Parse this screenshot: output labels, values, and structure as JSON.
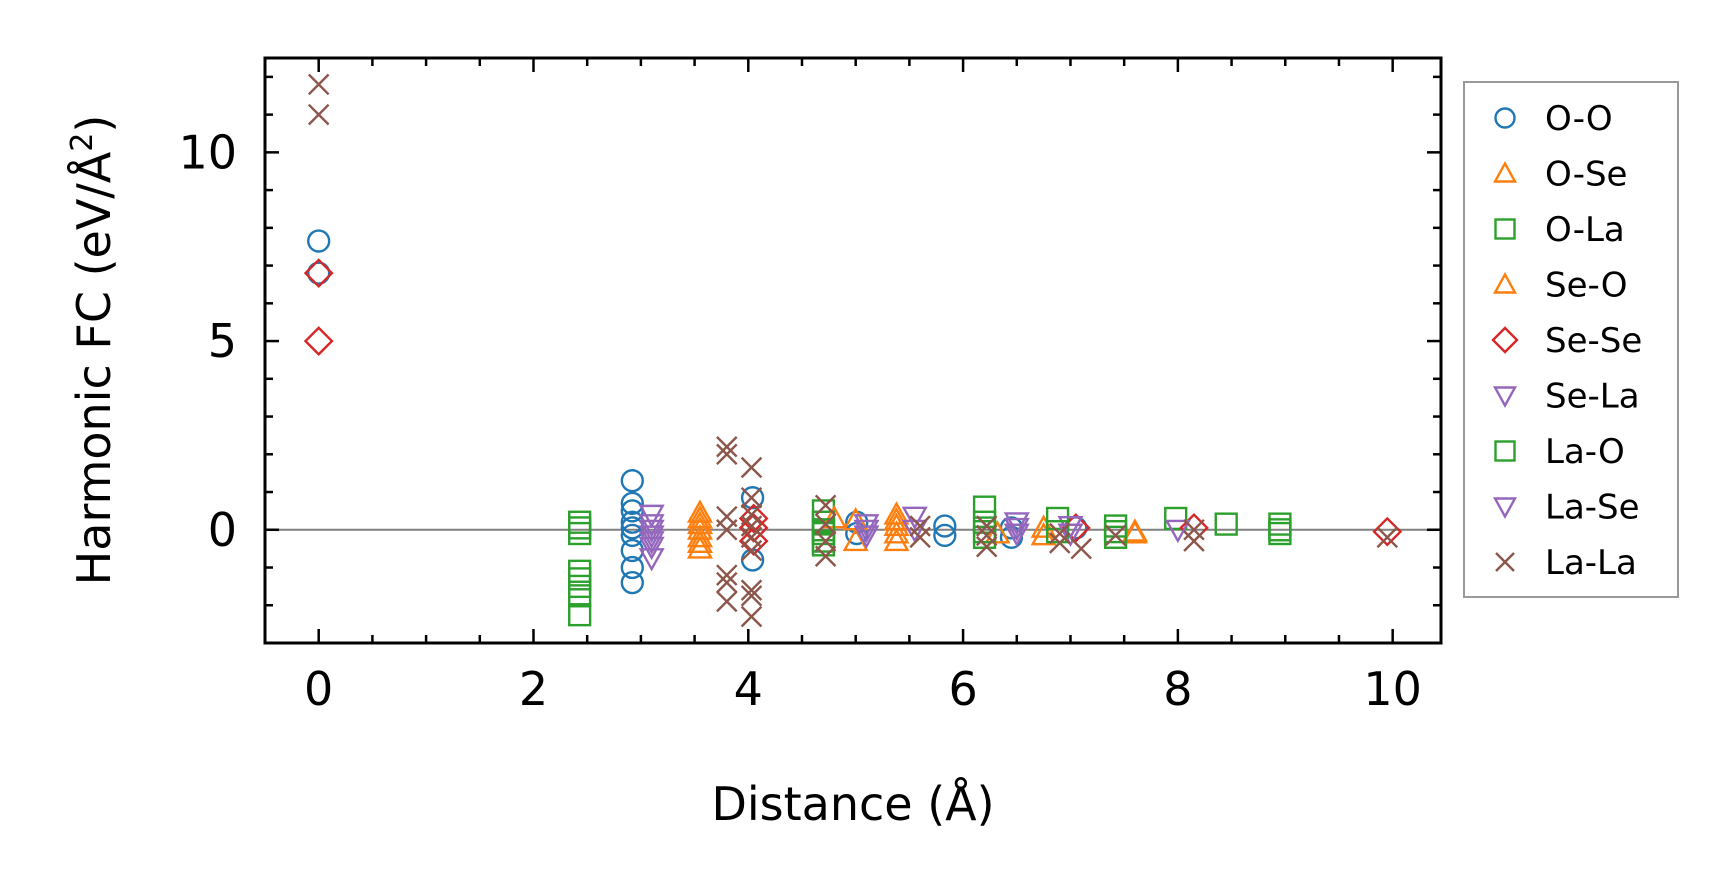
{
  "chart_data": {
    "type": "scatter",
    "title": "",
    "xlabel": "Distance (Å)",
    "ylabel_main": "Harmonic FC (eV/Å",
    "ylabel_sup": "2",
    "ylabel_end": ")",
    "xlim": [
      -0.5,
      10.45
    ],
    "ylim": [
      -3.0,
      12.5
    ],
    "xticks": [
      0,
      2,
      4,
      6,
      8,
      10
    ],
    "xtick_labels": [
      "0",
      "2",
      "4",
      "6",
      "8",
      "10"
    ],
    "yticks": [
      0,
      5,
      10
    ],
    "ytick_labels": [
      "0",
      "5",
      "10"
    ],
    "x_minor_step": 0.5,
    "y_minor_step": 1,
    "reference_line_y": 0,
    "reference_line_color": "#808080",
    "grid": false,
    "legend_position": "outside-right",
    "series": [
      {
        "name": "O-O",
        "marker": "circle",
        "color": "#1f77b4",
        "points": [
          [
            0,
            7.65
          ],
          [
            0,
            6.8
          ],
          [
            2.92,
            1.3
          ],
          [
            2.92,
            0.7
          ],
          [
            2.92,
            0.5
          ],
          [
            2.92,
            0.2
          ],
          [
            2.92,
            0.05
          ],
          [
            2.92,
            -0.15
          ],
          [
            2.92,
            -0.55
          ],
          [
            2.92,
            -1.0
          ],
          [
            2.92,
            -1.4
          ],
          [
            4.04,
            0.85
          ],
          [
            4.04,
            -0.8
          ],
          [
            5.01,
            0.2
          ],
          [
            5.01,
            -0.1
          ],
          [
            5.83,
            0.1
          ],
          [
            5.83,
            -0.15
          ],
          [
            6.45,
            0.05
          ],
          [
            6.45,
            -0.2
          ],
          [
            7.05,
            0.05
          ]
        ]
      },
      {
        "name": "O-Se",
        "marker": "triangle-up",
        "color": "#ff7f0e",
        "points": [
          [
            3.55,
            0.45
          ],
          [
            3.55,
            0.15
          ],
          [
            3.55,
            -0.2
          ],
          [
            3.55,
            -0.5
          ],
          [
            5.0,
            0.25
          ],
          [
            5.0,
            -0.3
          ],
          [
            5.38,
            0.4
          ],
          [
            5.38,
            0.1
          ],
          [
            5.38,
            -0.3
          ],
          [
            6.75,
            0.05
          ],
          [
            7.6,
            -0.05
          ]
        ]
      },
      {
        "name": "O-La",
        "marker": "square",
        "color": "#2ca02c",
        "points": [
          [
            2.43,
            0.2
          ],
          [
            2.43,
            -0.1
          ],
          [
            2.43,
            -1.1
          ],
          [
            2.43,
            -1.5
          ],
          [
            2.43,
            -1.75
          ],
          [
            2.43,
            -2.25
          ],
          [
            4.7,
            0.5
          ],
          [
            4.7,
            0.2
          ],
          [
            4.7,
            -0.1
          ],
          [
            4.7,
            -0.4
          ],
          [
            6.2,
            0.6
          ],
          [
            6.2,
            0.2
          ],
          [
            6.2,
            -0.2
          ],
          [
            6.88,
            0.3
          ],
          [
            7.42,
            0.1
          ],
          [
            7.42,
            -0.2
          ],
          [
            7.98,
            0.3
          ],
          [
            8.45,
            0.15
          ],
          [
            8.95,
            0.15
          ],
          [
            8.95,
            -0.1
          ]
        ]
      },
      {
        "name": "Se-O",
        "marker": "triangle-up",
        "color": "#ff7f0e",
        "points": [
          [
            3.55,
            0.3
          ],
          [
            3.55,
            0.0
          ],
          [
            3.55,
            -0.35
          ],
          [
            4.8,
            0.3
          ],
          [
            5.38,
            0.25
          ],
          [
            5.38,
            -0.1
          ],
          [
            6.32,
            -0.1
          ],
          [
            6.75,
            -0.15
          ],
          [
            7.6,
            -0.1
          ]
        ]
      },
      {
        "name": "Se-Se",
        "marker": "diamond",
        "color": "#d62728",
        "points": [
          [
            0,
            6.8
          ],
          [
            0,
            5.0
          ],
          [
            4.05,
            0.3
          ],
          [
            4.05,
            0.05
          ],
          [
            4.05,
            -0.3
          ],
          [
            7.05,
            0.05
          ],
          [
            8.15,
            0.05
          ],
          [
            9.95,
            -0.05
          ]
        ]
      },
      {
        "name": "Se-La",
        "marker": "triangle-down",
        "color": "#9467bd",
        "points": [
          [
            3.1,
            0.4
          ],
          [
            3.1,
            0.15
          ],
          [
            3.1,
            -0.15
          ],
          [
            3.1,
            -0.45
          ],
          [
            3.1,
            -0.75
          ],
          [
            5.1,
            0.15
          ],
          [
            5.1,
            -0.15
          ],
          [
            5.55,
            0.35
          ],
          [
            6.5,
            0.2
          ],
          [
            6.5,
            -0.1
          ],
          [
            7.0,
            0.1
          ],
          [
            8.0,
            0.0
          ]
        ]
      },
      {
        "name": "La-O",
        "marker": "square",
        "color": "#2ca02c",
        "points": [
          [
            2.43,
            0.05
          ],
          [
            2.43,
            -1.3
          ],
          [
            4.7,
            0.0
          ],
          [
            4.7,
            -0.3
          ],
          [
            6.2,
            -0.05
          ],
          [
            6.88,
            -0.05
          ],
          [
            7.42,
            -0.05
          ],
          [
            8.95,
            0.0
          ]
        ]
      },
      {
        "name": "La-Se",
        "marker": "triangle-down",
        "color": "#9467bd",
        "points": [
          [
            3.1,
            0.0
          ],
          [
            3.1,
            -0.3
          ],
          [
            5.1,
            0.0
          ],
          [
            5.55,
            0.0
          ],
          [
            6.5,
            0.05
          ],
          [
            7.0,
            -0.1
          ]
        ]
      },
      {
        "name": "La-La",
        "marker": "x",
        "color": "#8c564b",
        "points": [
          [
            0,
            11.8
          ],
          [
            0,
            11.0
          ],
          [
            3.8,
            2.2
          ],
          [
            3.8,
            2.0
          ],
          [
            3.8,
            0.35
          ],
          [
            3.8,
            0.0
          ],
          [
            3.8,
            -1.2
          ],
          [
            3.8,
            -1.4
          ],
          [
            3.8,
            -1.9
          ],
          [
            4.03,
            1.65
          ],
          [
            4.03,
            0.85
          ],
          [
            4.03,
            0.4
          ],
          [
            4.03,
            0.1
          ],
          [
            4.03,
            -0.2
          ],
          [
            4.03,
            -0.55
          ],
          [
            4.03,
            -1.6
          ],
          [
            4.03,
            -1.75
          ],
          [
            4.03,
            -2.3
          ],
          [
            4.72,
            0.65
          ],
          [
            4.72,
            0.15
          ],
          [
            4.72,
            -0.3
          ],
          [
            4.72,
            -0.7
          ],
          [
            5.6,
            0.1
          ],
          [
            5.6,
            -0.2
          ],
          [
            6.22,
            0.1
          ],
          [
            6.22,
            -0.15
          ],
          [
            6.22,
            -0.45
          ],
          [
            6.9,
            -0.1
          ],
          [
            6.9,
            -0.35
          ],
          [
            7.1,
            -0.5
          ],
          [
            7.42,
            -0.15
          ],
          [
            8.15,
            0.0
          ],
          [
            8.15,
            -0.3
          ],
          [
            9.95,
            -0.2
          ]
        ]
      }
    ]
  }
}
